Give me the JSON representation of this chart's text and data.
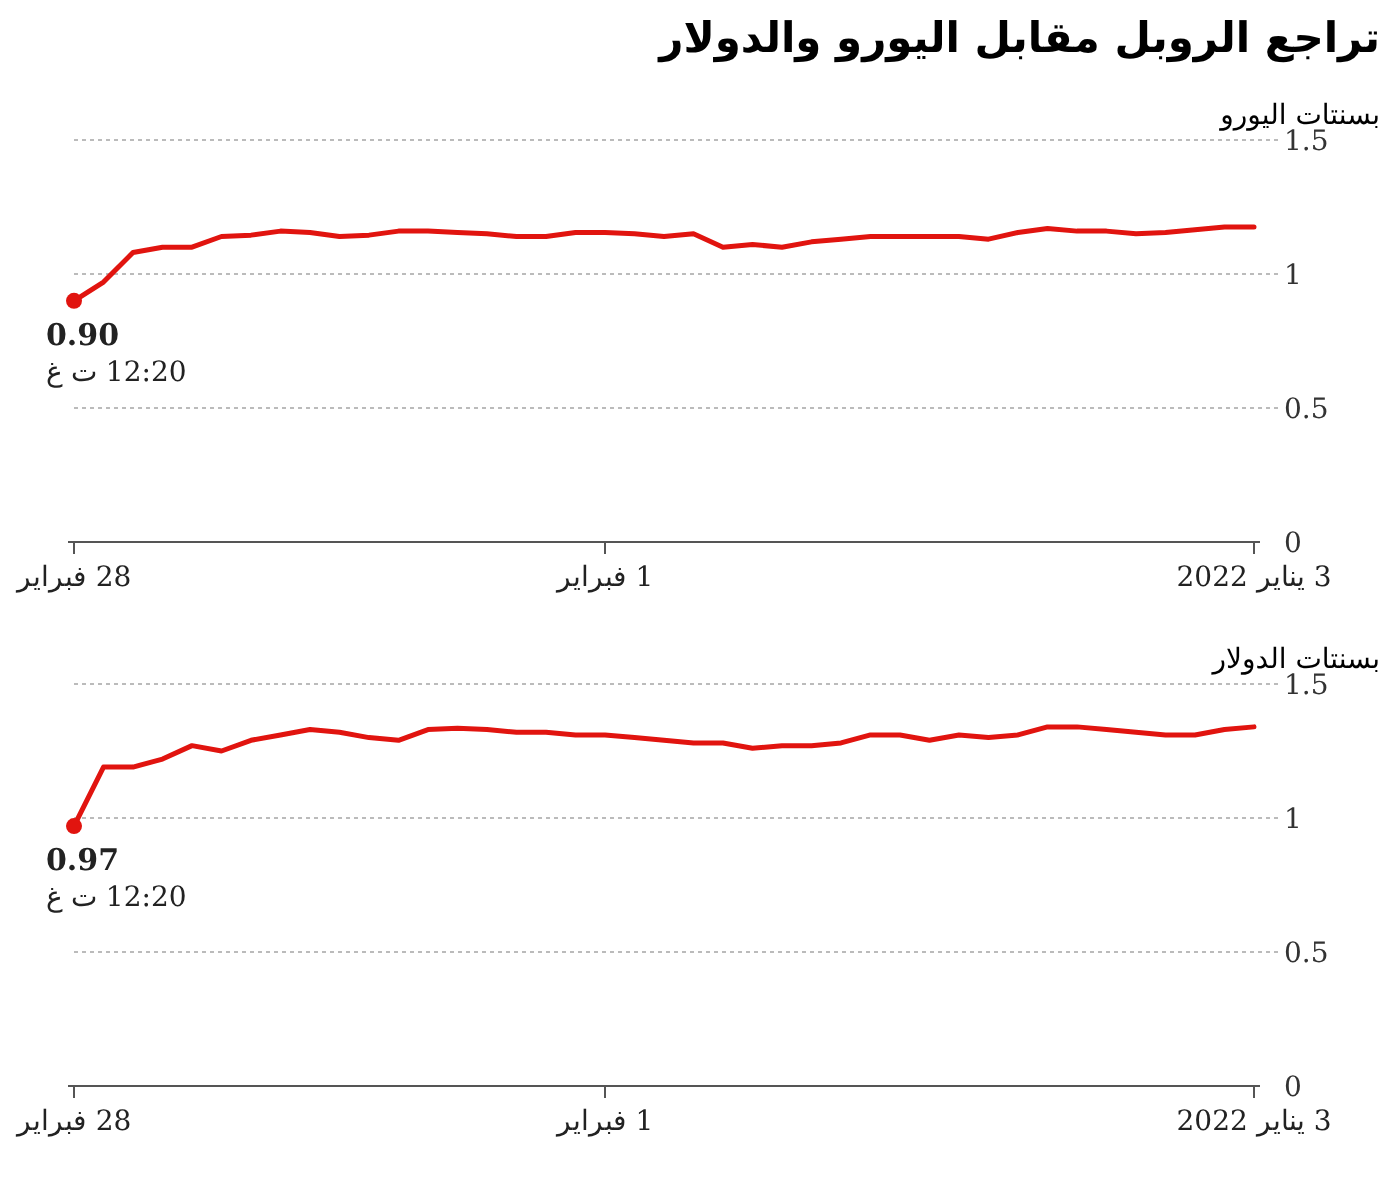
{
  "chart_data": [
    {
      "type": "line",
      "title": "تراجع الروبل مقابل اليورو والدولار",
      "ylabel": "بسنتات اليورو",
      "categories": [
        "28 فبراير",
        null,
        null,
        null,
        null,
        null,
        null,
        null,
        null,
        null,
        null,
        null,
        null,
        null,
        null,
        null,
        null,
        null,
        "1 فبراير",
        null,
        null,
        null,
        null,
        null,
        null,
        null,
        null,
        null,
        null,
        null,
        null,
        null,
        null,
        null,
        null,
        null,
        null,
        null,
        null,
        null,
        "3 يناير 2022"
      ],
      "series": [
        {
          "color": "#e1140f",
          "values": [
            0.9,
            0.97,
            1.08,
            1.1,
            1.1,
            1.14,
            1.145,
            1.16,
            1.155,
            1.14,
            1.145,
            1.16,
            1.16,
            1.155,
            1.15,
            1.14,
            1.14,
            1.155,
            1.155,
            1.15,
            1.14,
            1.15,
            1.1,
            1.11,
            1.1,
            1.12,
            1.13,
            1.14,
            1.14,
            1.14,
            1.14,
            1.13,
            1.155,
            1.17,
            1.16,
            1.16,
            1.15,
            1.155,
            1.165,
            1.175,
            1.175
          ]
        },
        {
          "type": "scatter",
          "color": "#e1140f",
          "values": [
            0.9,
            null,
            null,
            null,
            null,
            null,
            null,
            null,
            null,
            null,
            null,
            null,
            null,
            null,
            null,
            null,
            null,
            null,
            null,
            null,
            null,
            null,
            null,
            null,
            null,
            null,
            null,
            null,
            null,
            null,
            null,
            null,
            null,
            null,
            null,
            null,
            null,
            null,
            null,
            null,
            null
          ]
        }
      ],
      "ylim": [
        0,
        1.5
      ],
      "yticks": [
        0,
        0.5,
        1,
        1.5
      ],
      "grid": "y",
      "annotations": [
        {
          "text": "0.90",
          "x": "28 فبراير",
          "y": 0.9
        },
        "12:20 ت غ"
      ]
    },
    {
      "type": "line",
      "ylabel": "بسنتات الدولار",
      "categories": [
        "28 فبراير",
        null,
        null,
        null,
        null,
        null,
        null,
        null,
        null,
        null,
        null,
        null,
        null,
        null,
        null,
        null,
        null,
        null,
        "1 فبراير",
        null,
        null,
        null,
        null,
        null,
        null,
        null,
        null,
        null,
        null,
        null,
        null,
        null,
        null,
        null,
        null,
        null,
        null,
        null,
        null,
        null,
        "3 يناير 2022"
      ],
      "series": [
        {
          "color": "#e1140f",
          "values": [
            0.97,
            1.19,
            1.19,
            1.22,
            1.27,
            1.25,
            1.29,
            1.31,
            1.33,
            1.32,
            1.3,
            1.29,
            1.33,
            1.335,
            1.33,
            1.32,
            1.32,
            1.31,
            1.31,
            1.3,
            1.29,
            1.28,
            1.28,
            1.26,
            1.27,
            1.27,
            1.28,
            1.31,
            1.31,
            1.29,
            1.31,
            1.3,
            1.31,
            1.34,
            1.34,
            1.33,
            1.32,
            1.31,
            1.31,
            1.33,
            1.34
          ]
        },
        {
          "type": "scatter",
          "color": "#e1140f",
          "values": [
            0.97,
            null,
            null,
            null,
            null,
            null,
            null,
            null,
            null,
            null,
            null,
            null,
            null,
            null,
            null,
            null,
            null,
            null,
            null,
            null,
            null,
            null,
            null,
            null,
            null,
            null,
            null,
            null,
            null,
            null,
            null,
            null,
            null,
            null,
            null,
            null,
            null,
            null,
            null,
            null,
            null
          ]
        }
      ],
      "ylim": [
        0,
        1.5
      ],
      "yticks": [
        0,
        0.5,
        1,
        1.5
      ],
      "grid": "y",
      "annotations": [
        {
          "text": "0.97",
          "x": "28 فبراير",
          "y": 0.97
        },
        "12:20 ت غ"
      ]
    }
  ]
}
